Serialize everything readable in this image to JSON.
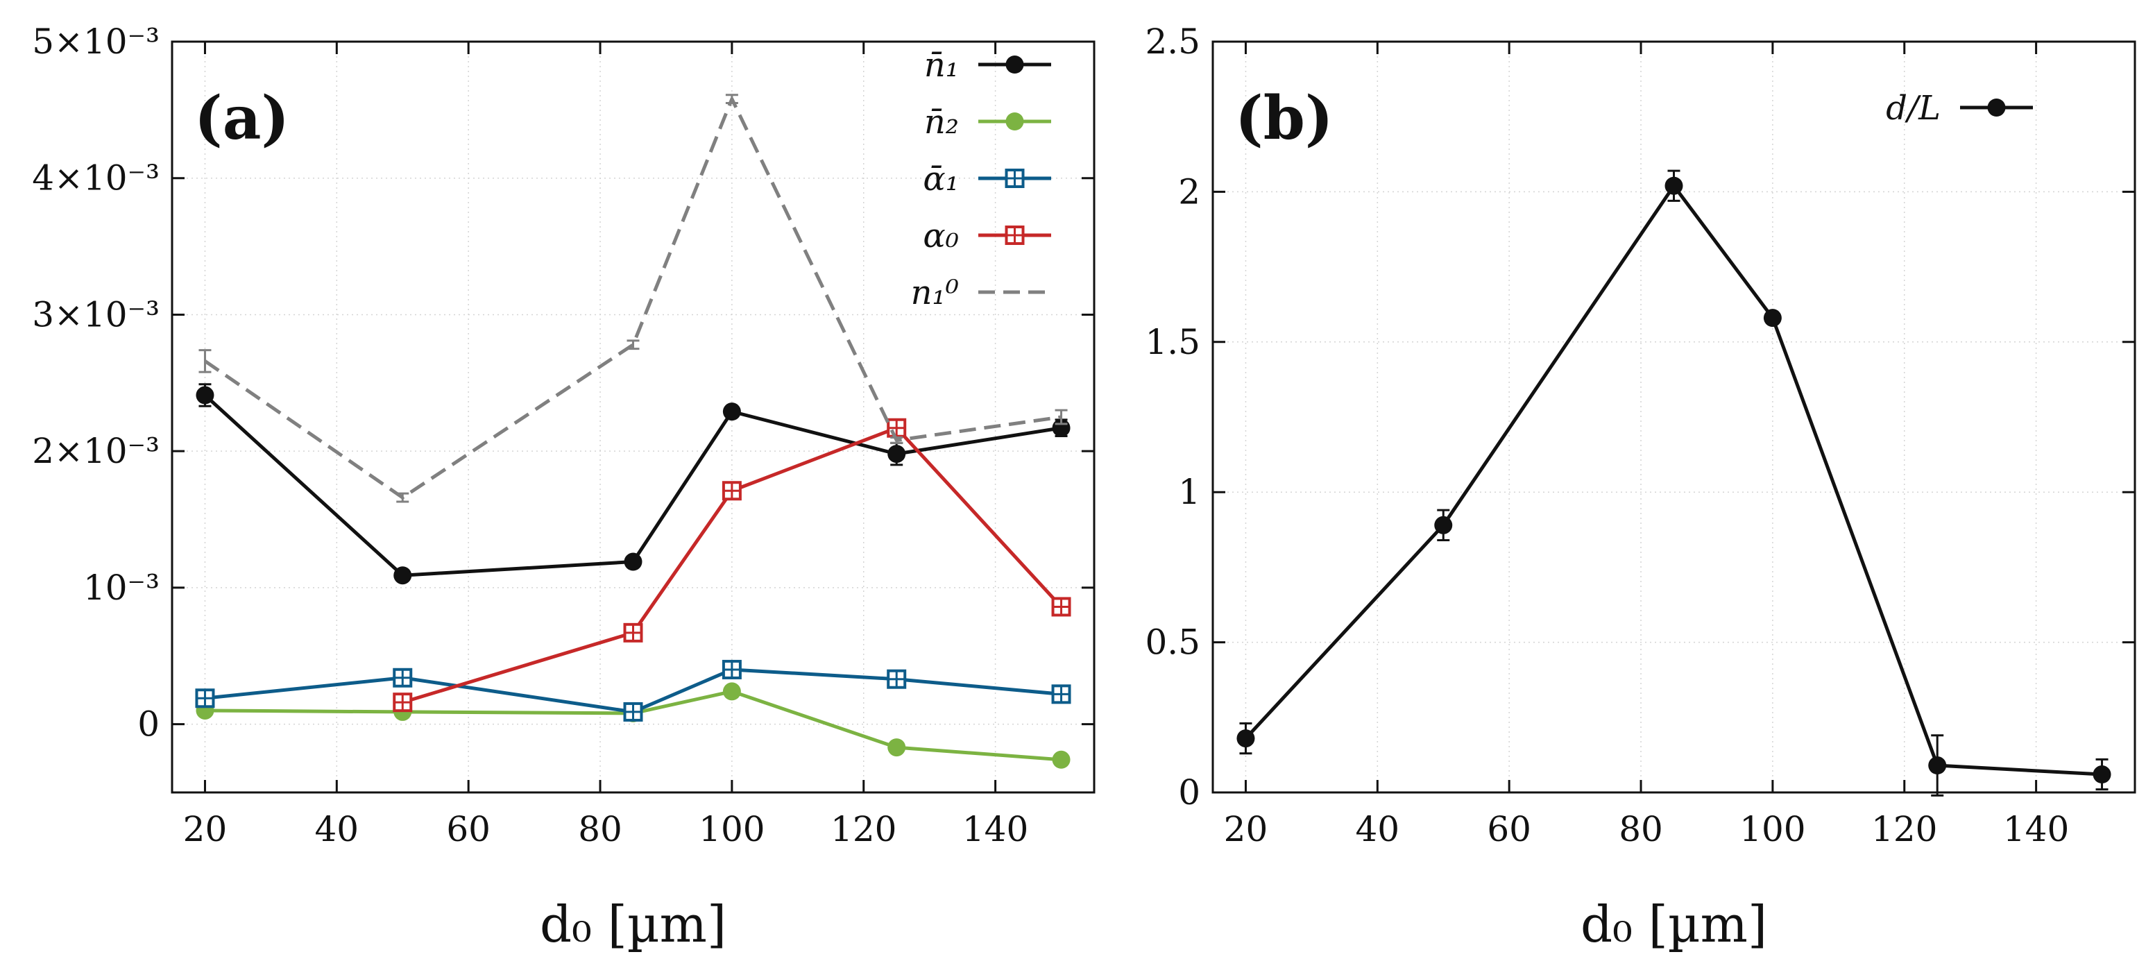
{
  "chart_data": [
    {
      "panel": "(a)",
      "type": "line",
      "x": [
        20,
        50,
        85,
        100,
        125,
        150
      ],
      "xlabel": "d₀ [µm]",
      "ylabel": "",
      "xlim": [
        15,
        155
      ],
      "ylim": [
        -0.0005,
        0.005
      ],
      "xticks": [
        20,
        40,
        60,
        80,
        100,
        120,
        140
      ],
      "yticks": [
        0,
        0.001,
        0.002,
        0.003,
        0.004,
        0.005
      ],
      "ytick_labels": [
        "0",
        "10⁻³",
        "2×10⁻³",
        "3×10⁻³",
        "4×10⁻³",
        "5×10⁻³"
      ],
      "grid": true,
      "legend_position": "top-right",
      "series": [
        {
          "name": "n̄₁",
          "color": "#111111",
          "marker": "circle",
          "dash": "solid",
          "values": [
            0.00241,
            0.00109,
            0.00119,
            0.00229,
            0.00198,
            0.00217
          ],
          "errors": [
            8e-05,
            3e-05,
            3e-05,
            3e-05,
            8e-05,
            6e-05
          ]
        },
        {
          "name": "n̄₂",
          "color": "#7cb342",
          "marker": "circle",
          "dash": "solid",
          "values": [
            0.0001,
            9e-05,
            8e-05,
            0.00024,
            -0.00017,
            -0.00026
          ],
          "errors": [
            0,
            0,
            0,
            0,
            0,
            0
          ]
        },
        {
          "name": "ᾱ₁",
          "color": "#0d5c8a",
          "marker": "square",
          "dash": "solid",
          "values": [
            0.00019,
            0.00034,
            9e-05,
            0.0004,
            0.00033,
            0.00022
          ],
          "errors": [
            0,
            0,
            0,
            0,
            0,
            0
          ]
        },
        {
          "name": "α₀",
          "color": "#c62828",
          "marker": "square",
          "dash": "solid",
          "x": [
            50,
            85,
            100,
            125,
            150
          ],
          "values": [
            0.00016,
            0.00067,
            0.00171,
            0.00217,
            0.00086
          ],
          "errors": [
            0,
            0,
            0,
            0,
            0
          ]
        },
        {
          "name": "n₁⁰",
          "color": "#808080",
          "marker": "none",
          "dash": "dashed",
          "x": [
            20,
            50,
            85,
            100,
            125,
            150
          ],
          "values": [
            0.00266,
            0.00166,
            0.00278,
            0.00458,
            0.00208,
            0.00225
          ],
          "errors": [
            8e-05,
            3e-05,
            3e-05,
            3e-05,
            2e-05,
            5e-05
          ]
        }
      ]
    },
    {
      "panel": "(b)",
      "type": "line",
      "x": [
        20,
        50,
        85,
        100,
        125,
        150
      ],
      "xlabel": "d₀ [µm]",
      "ylabel": "",
      "xlim": [
        15,
        155
      ],
      "ylim": [
        0,
        2.5
      ],
      "xticks": [
        20,
        40,
        60,
        80,
        100,
        120,
        140
      ],
      "yticks": [
        0,
        0.5,
        1,
        1.5,
        2,
        2.5
      ],
      "ytick_labels": [
        "0",
        "0.5",
        "1",
        "1.5",
        "2",
        "2.5"
      ],
      "grid": true,
      "legend_position": "top-right",
      "series": [
        {
          "name": "d/L",
          "color": "#111111",
          "marker": "circle",
          "dash": "solid",
          "values": [
            0.18,
            0.89,
            2.02,
            1.58,
            0.09,
            0.06
          ],
          "errors": [
            0.05,
            0.05,
            0.05,
            0.01,
            0.1,
            0.05
          ]
        }
      ]
    }
  ]
}
